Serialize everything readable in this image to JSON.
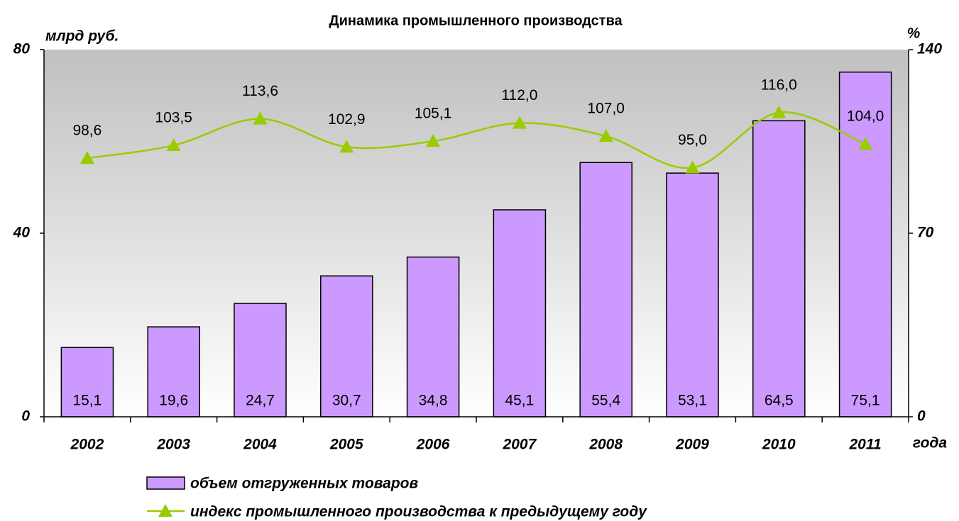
{
  "chart_data": {
    "type": "combo",
    "title": "Динамика промышленного производства",
    "y_label": "млрд руб.",
    "y2_label": "%",
    "x_label": "года",
    "categories": [
      "2002",
      "2003",
      "2004",
      "2005",
      "2006",
      "2007",
      "2008",
      "2009",
      "2010",
      "2011"
    ],
    "series": [
      {
        "name": "объем отгруженных товаров",
        "type": "bar",
        "color": "#cc99ff",
        "values": [
          15.1,
          19.6,
          24.7,
          30.7,
          34.8,
          45.1,
          55.4,
          53.1,
          64.5,
          75.1
        ],
        "value_labels": [
          "15,1",
          "19,6",
          "24,7",
          "30,7",
          "34,8",
          "45,1",
          "55,4",
          "53,1",
          "64,5",
          "75,1"
        ]
      },
      {
        "name": "индекс промышленного производства к предыдущему году",
        "type": "line",
        "axis": "y2",
        "color": "#99cc00",
        "values": [
          98.6,
          103.5,
          113.6,
          102.9,
          105.1,
          112.0,
          107.0,
          95.0,
          116.0,
          104.0
        ],
        "value_labels": [
          "98,6",
          "103,5",
          "113,6",
          "102,9",
          "105,1",
          "112,0",
          "107,0",
          "95,0",
          "116,0",
          "104,0"
        ]
      }
    ],
    "ylim": [
      0,
      80
    ],
    "yticks": [
      0,
      40,
      80
    ],
    "y2lim": [
      0,
      140
    ],
    "y2ticks": [
      0,
      70,
      140
    ]
  }
}
